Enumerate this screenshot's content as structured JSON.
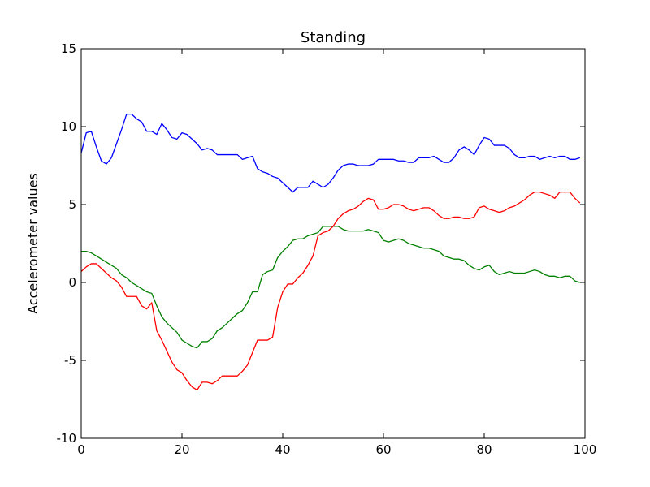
{
  "chart_data": {
    "type": "line",
    "title": "Standing",
    "xlabel": "",
    "ylabel": "Accelerometer values",
    "xlim": [
      0,
      100
    ],
    "ylim": [
      -10,
      15
    ],
    "x_ticks": [
      0,
      20,
      40,
      60,
      80,
      100
    ],
    "y_ticks": [
      -10,
      -5,
      0,
      5,
      10,
      15
    ],
    "grid": false,
    "x": [
      0,
      1,
      2,
      3,
      4,
      5,
      6,
      7,
      8,
      9,
      10,
      11,
      12,
      13,
      14,
      15,
      16,
      17,
      18,
      19,
      20,
      21,
      22,
      23,
      24,
      25,
      26,
      27,
      28,
      29,
      30,
      31,
      32,
      33,
      34,
      35,
      36,
      37,
      38,
      39,
      40,
      41,
      42,
      43,
      44,
      45,
      46,
      47,
      48,
      49,
      50,
      51,
      52,
      53,
      54,
      55,
      56,
      57,
      58,
      59,
      60,
      61,
      62,
      63,
      64,
      65,
      66,
      67,
      68,
      69,
      70,
      71,
      72,
      73,
      74,
      75,
      76,
      77,
      78,
      79,
      80,
      81,
      82,
      83,
      84,
      85,
      86,
      87,
      88,
      89,
      90,
      91,
      92,
      93,
      94,
      95,
      96,
      97,
      98,
      99
    ],
    "series": [
      {
        "color": "#0000ff",
        "values": [
          8.3,
          9.6,
          9.7,
          8.7,
          7.8,
          7.6,
          8.0,
          8.9,
          9.8,
          10.8,
          10.8,
          10.5,
          10.3,
          9.7,
          9.7,
          9.5,
          10.2,
          9.8,
          9.3,
          9.2,
          9.6,
          9.5,
          9.2,
          8.9,
          8.5,
          8.6,
          8.5,
          8.2,
          8.2,
          8.2,
          8.2,
          8.2,
          7.9,
          8.0,
          8.1,
          7.3,
          7.1,
          7.0,
          6.8,
          6.7,
          6.4,
          6.1,
          5.8,
          6.1,
          6.1,
          6.1,
          6.5,
          6.3,
          6.1,
          6.3,
          6.7,
          7.2,
          7.5,
          7.6,
          7.6,
          7.5,
          7.5,
          7.5,
          7.6,
          7.9,
          7.9,
          7.9,
          7.9,
          7.8,
          7.8,
          7.7,
          7.7,
          8.0,
          8.0,
          8.0,
          8.1,
          7.9,
          7.7,
          7.7,
          8.0,
          8.5,
          8.7,
          8.5,
          8.2,
          8.8,
          9.3,
          9.2,
          8.8,
          8.8,
          8.8,
          8.6,
          8.2,
          8.0,
          8.0,
          8.1,
          8.1,
          7.9,
          8.0,
          8.1,
          8.0,
          8.1,
          8.1,
          7.9,
          7.9,
          8.0
        ]
      },
      {
        "color": "#008000",
        "values": [
          2.0,
          2.0,
          1.9,
          1.7,
          1.5,
          1.3,
          1.1,
          0.9,
          0.5,
          0.3,
          0.0,
          -0.2,
          -0.4,
          -0.6,
          -0.7,
          -1.5,
          -2.2,
          -2.6,
          -2.9,
          -3.2,
          -3.7,
          -3.9,
          -4.1,
          -4.2,
          -3.8,
          -3.8,
          -3.6,
          -3.1,
          -2.9,
          -2.6,
          -2.3,
          -2.0,
          -1.8,
          -1.3,
          -0.6,
          -0.6,
          0.5,
          0.7,
          0.8,
          1.6,
          2.0,
          2.3,
          2.7,
          2.8,
          2.8,
          3.0,
          3.1,
          3.2,
          3.6,
          3.6,
          3.6,
          3.6,
          3.4,
          3.3,
          3.3,
          3.3,
          3.3,
          3.4,
          3.3,
          3.2,
          2.7,
          2.6,
          2.7,
          2.8,
          2.7,
          2.5,
          2.4,
          2.3,
          2.2,
          2.2,
          2.1,
          2.0,
          1.7,
          1.6,
          1.5,
          1.5,
          1.4,
          1.1,
          0.9,
          0.8,
          1.0,
          1.1,
          0.7,
          0.5,
          0.6,
          0.7,
          0.6,
          0.6,
          0.6,
          0.7,
          0.8,
          0.7,
          0.5,
          0.4,
          0.4,
          0.3,
          0.4,
          0.4,
          0.1,
          0.0
        ]
      },
      {
        "color": "#ff0000",
        "values": [
          0.7,
          1.0,
          1.2,
          1.2,
          0.9,
          0.6,
          0.3,
          0.1,
          -0.3,
          -0.9,
          -0.9,
          -0.9,
          -1.5,
          -1.7,
          -1.3,
          -3.1,
          -3.7,
          -4.4,
          -5.1,
          -5.6,
          -5.8,
          -6.3,
          -6.7,
          -6.9,
          -6.4,
          -6.4,
          -6.5,
          -6.3,
          -6.0,
          -6.0,
          -6.0,
          -6.0,
          -5.7,
          -5.3,
          -4.5,
          -3.7,
          -3.7,
          -3.7,
          -3.5,
          -1.6,
          -0.6,
          -0.1,
          -0.1,
          0.3,
          0.6,
          1.1,
          1.7,
          3.0,
          3.2,
          3.3,
          3.6,
          4.1,
          4.4,
          4.6,
          4.7,
          4.9,
          5.2,
          5.4,
          5.3,
          4.7,
          4.7,
          4.8,
          5.0,
          5.0,
          4.9,
          4.7,
          4.6,
          4.7,
          4.8,
          4.8,
          4.6,
          4.3,
          4.1,
          4.1,
          4.2,
          4.2,
          4.1,
          4.1,
          4.2,
          4.8,
          4.9,
          4.7,
          4.6,
          4.5,
          4.6,
          4.8,
          4.9,
          5.1,
          5.3,
          5.6,
          5.8,
          5.8,
          5.7,
          5.6,
          5.4,
          5.8,
          5.8,
          5.8,
          5.4,
          5.1
        ]
      }
    ]
  }
}
